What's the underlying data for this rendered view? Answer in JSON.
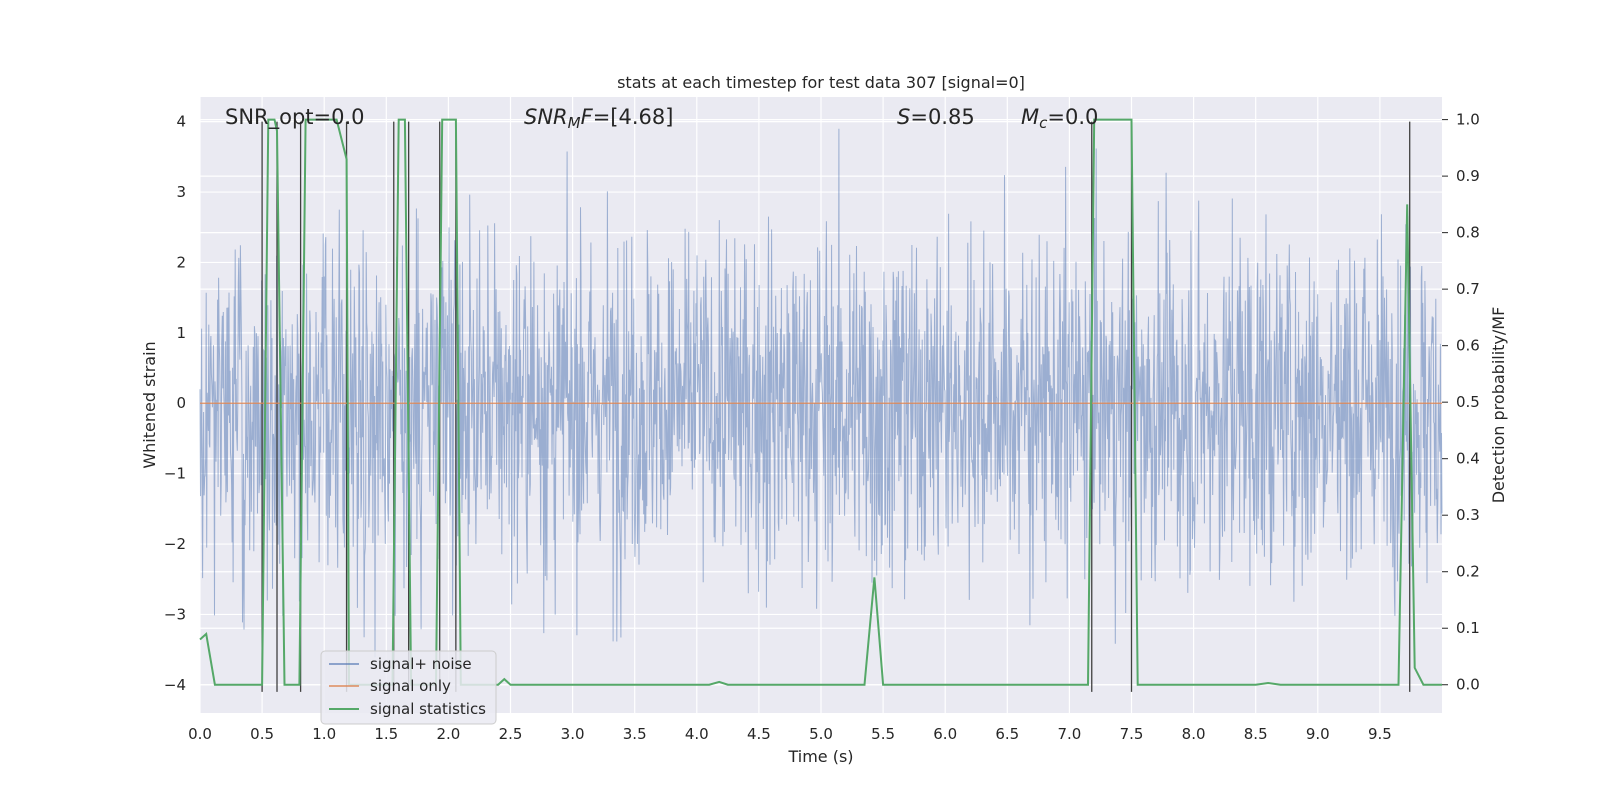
{
  "chart_data": {
    "type": "line",
    "title": "stats at each timestep for test data 307 [signal=0]",
    "xlabel": "Time (s)",
    "ylabel_left": "Whitened strain",
    "ylabel_right": "Detection probability/MF",
    "xlim": [
      0.0,
      10.0
    ],
    "ylim_left": [
      -4.4,
      4.35
    ],
    "ylim_right": [
      -0.05,
      1.04
    ],
    "x_ticks": [
      "0.0",
      "0.5",
      "1.0",
      "1.5",
      "2.0",
      "2.5",
      "3.0",
      "3.5",
      "4.0",
      "4.5",
      "5.0",
      "5.5",
      "6.0",
      "6.5",
      "7.0",
      "7.5",
      "8.0",
      "8.5",
      "9.0",
      "9.5"
    ],
    "y_ticks_left": [
      "−4",
      "−3",
      "−2",
      "−1",
      "0",
      "1",
      "2",
      "3",
      "4"
    ],
    "y_ticks_right": [
      "0.0",
      "0.1",
      "0.2",
      "0.3",
      "0.4",
      "0.5",
      "0.6",
      "0.7",
      "0.8",
      "0.9",
      "1.0"
    ],
    "grid": true,
    "legend_placement": "lower-left",
    "annotations": {
      "snr_opt": "SNR_opt=0.0",
      "snr_mf_sym": "SNR",
      "snr_mf_sub": "M",
      "snr_mf_f": "F",
      "snr_mf_val": "=[4.68]",
      "s_sym": "S",
      "s_val": "=0.85",
      "mc_sym": "M",
      "mc_sub": "c",
      "mc_val": "=0.0"
    },
    "series": [
      {
        "name": "signal+ noise",
        "color": "#4c72b0",
        "axis": "left",
        "description_values": "whitened noise, amplitude about ±2.5",
        "amplitude": 2.3
      },
      {
        "name": "signal only",
        "color": "#dd8452",
        "axis": "left",
        "x": [
          0.0,
          10.0
        ],
        "y": [
          0.0,
          0.0
        ]
      },
      {
        "name": "signal statistics",
        "color": "#55a868",
        "axis": "right",
        "x": [
          0.0,
          0.05,
          0.12,
          0.2,
          0.5,
          0.55,
          0.6,
          0.62,
          0.68,
          0.8,
          0.85,
          0.9,
          1.1,
          1.18,
          1.2,
          1.25,
          1.3,
          1.55,
          1.6,
          1.65,
          1.7,
          1.75,
          1.9,
          1.95,
          2.0,
          2.06,
          2.1,
          2.2,
          2.3,
          2.4,
          2.45,
          2.5,
          2.6,
          4.1,
          4.18,
          4.25,
          4.3,
          5.35,
          5.43,
          5.5,
          5.55,
          5.6,
          7.15,
          7.2,
          7.25,
          7.5,
          7.55,
          7.6,
          8.5,
          8.6,
          8.7,
          9.65,
          9.72,
          9.78,
          9.85,
          9.9,
          10.0
        ],
        "y": [
          0.08,
          0.09,
          0.0,
          0.0,
          0.0,
          1.0,
          1.0,
          0.98,
          0.0,
          0.0,
          1.0,
          1.0,
          1.0,
          0.93,
          0.0,
          0.0,
          0.0,
          0.0,
          1.0,
          1.0,
          0.0,
          0.0,
          0.0,
          1.0,
          1.0,
          1.0,
          0.0,
          0.0,
          0.0,
          0.0,
          0.01,
          0.0,
          0.0,
          0.0,
          0.005,
          0.0,
          0.0,
          0.0,
          0.19,
          0.0,
          0.0,
          0.0,
          0.0,
          1.0,
          1.0,
          1.0,
          0.0,
          0.0,
          0.0,
          0.003,
          0.0,
          0.0,
          0.85,
          0.03,
          0.0,
          0.0,
          0.0
        ]
      }
    ],
    "vertical_markers_x": [
      0.5,
      0.62,
      0.81,
      1.18,
      1.56,
      1.68,
      1.93,
      2.06,
      7.18,
      7.5,
      9.74
    ],
    "colors": {
      "plot_bg": "#eaeaf2",
      "grid": "#ffffff",
      "marker": "#404040"
    }
  }
}
